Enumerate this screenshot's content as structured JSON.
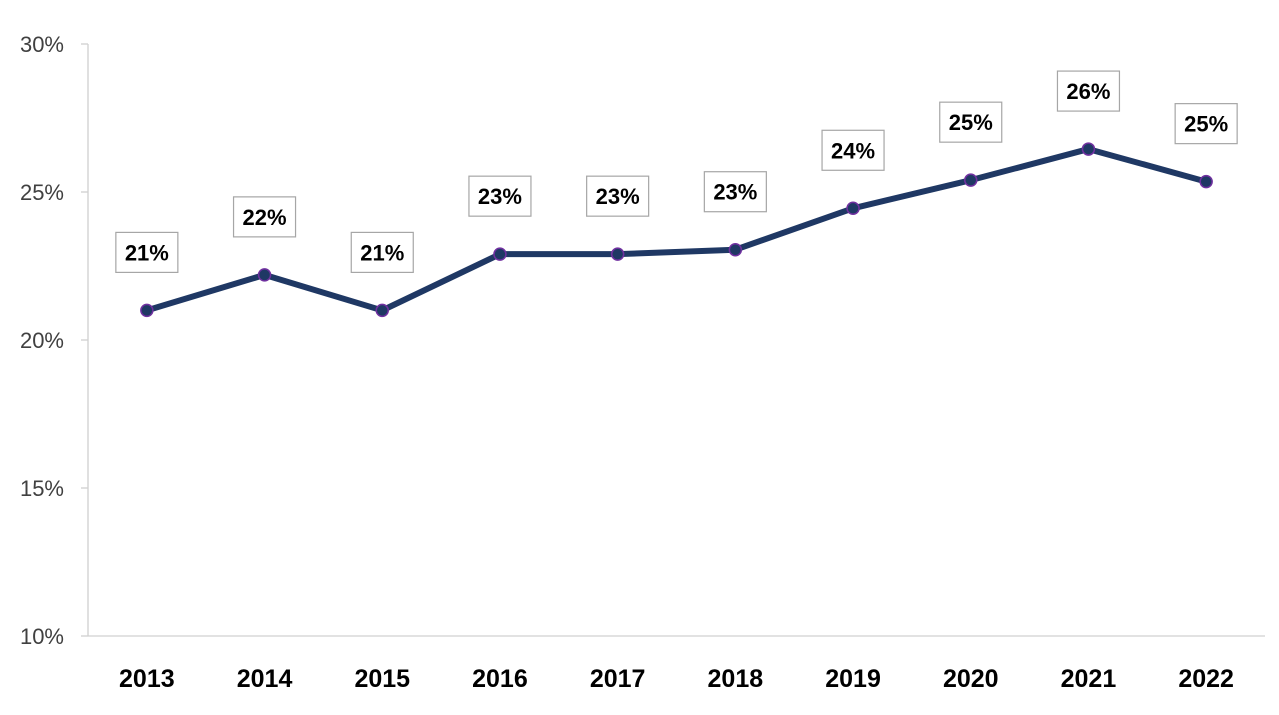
{
  "chart_data": {
    "type": "line",
    "title": "",
    "xlabel": "",
    "ylabel": "",
    "categories": [
      "2013",
      "2014",
      "2015",
      "2016",
      "2017",
      "2018",
      "2019",
      "2020",
      "2021",
      "2022"
    ],
    "series": [
      {
        "values": [
          21.0,
          22.2,
          21.0,
          22.9,
          22.9,
          23.05,
          24.45,
          25.4,
          26.45,
          25.35
        ],
        "data_labels": [
          "21%",
          "22%",
          "21%",
          "23%",
          "23%",
          "23%",
          "24%",
          "25%",
          "26%",
          "25%"
        ],
        "color": "#1f3864"
      }
    ],
    "ylim": [
      10,
      30
    ],
    "yticks": [
      10,
      15,
      20,
      25,
      30
    ],
    "ytick_labels": [
      "10%",
      "15%",
      "20%",
      "25%",
      "30%"
    ],
    "grid": false,
    "legend": "none"
  }
}
